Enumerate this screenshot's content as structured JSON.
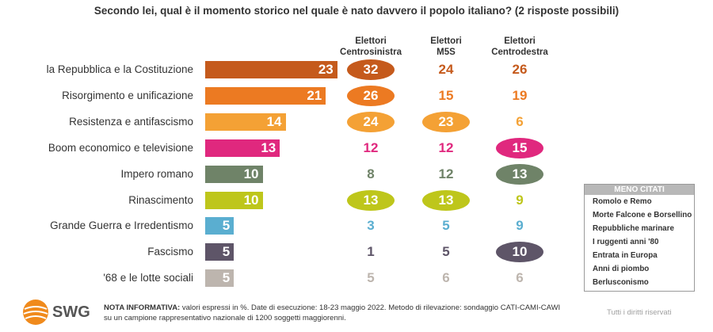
{
  "title": "Secondo lei, qual è il momento storico nel quale è nato davvero il popolo italiano? (2 risposte possibili)",
  "columns": [
    {
      "line1": "Elettori",
      "line2": "Centrosinistra"
    },
    {
      "line1": "Elettori",
      "line2": "M5S"
    },
    {
      "line1": "Elettori",
      "line2": "Centrodestra"
    }
  ],
  "chart_data": {
    "type": "bar",
    "orientation": "horizontal",
    "title": "Secondo lei, qual è il momento storico nel quale è nato davvero il popolo italiano? (2 risposte possibili)",
    "categories": [
      "la Repubblica e la Costituzione",
      "Risorgimento e unificazione",
      "Resistenza e antifascismo",
      "Boom economico e televisione",
      "Impero romano",
      "Rinascimento",
      "Grande Guerra e Irredentismo",
      "Fascismo",
      "'68 e le lotte sociali"
    ],
    "values": [
      23,
      21,
      14,
      13,
      10,
      10,
      5,
      5,
      5
    ],
    "colors": [
      "#c55a1c",
      "#ec7a22",
      "#f4a135",
      "#e0287e",
      "#6f8368",
      "#bec61b",
      "#5aaed0",
      "#5e5568",
      "#bdb5ae"
    ],
    "series": [
      {
        "name": "Elettori Centrosinistra",
        "values": [
          32,
          26,
          24,
          12,
          8,
          13,
          3,
          1,
          5
        ]
      },
      {
        "name": "Elettori M5S",
        "values": [
          24,
          15,
          23,
          12,
          12,
          13,
          5,
          5,
          6
        ]
      },
      {
        "name": "Elettori Centrodestra",
        "values": [
          26,
          19,
          6,
          15,
          13,
          9,
          9,
          10,
          6
        ]
      }
    ],
    "highlighted": [
      [
        true,
        false,
        false
      ],
      [
        true,
        false,
        false
      ],
      [
        true,
        true,
        false
      ],
      [
        false,
        false,
        true
      ],
      [
        false,
        false,
        true
      ],
      [
        true,
        true,
        false
      ],
      [
        false,
        false,
        false
      ],
      [
        false,
        false,
        true
      ],
      [
        false,
        false,
        false
      ]
    ],
    "grid": false
  },
  "legend": {
    "title": "MENO CITATI",
    "items": [
      "Romolo e Remo",
      "Morte Falcone e Borsellino",
      "Repubbliche marinare",
      "I ruggenti anni '80",
      "Entrata in Europa",
      "Anni di piombo",
      "Berlusconismo"
    ]
  },
  "footer": {
    "brand": "SWG",
    "note_bold": "NOTA INFORMATIVA:",
    "note_text": " valori espressi in %. Date di esecuzione: 18-23 maggio 2022. Metodo di rilevazione: sondaggio CATI-CAMI-CAWI su un campione rappresentativo nazionale di 1200 soggetti maggiorenni.",
    "rights": "Tutti i diritti riservati"
  },
  "colors": {
    "text": "#333333",
    "logo": "#f08a1c"
  }
}
